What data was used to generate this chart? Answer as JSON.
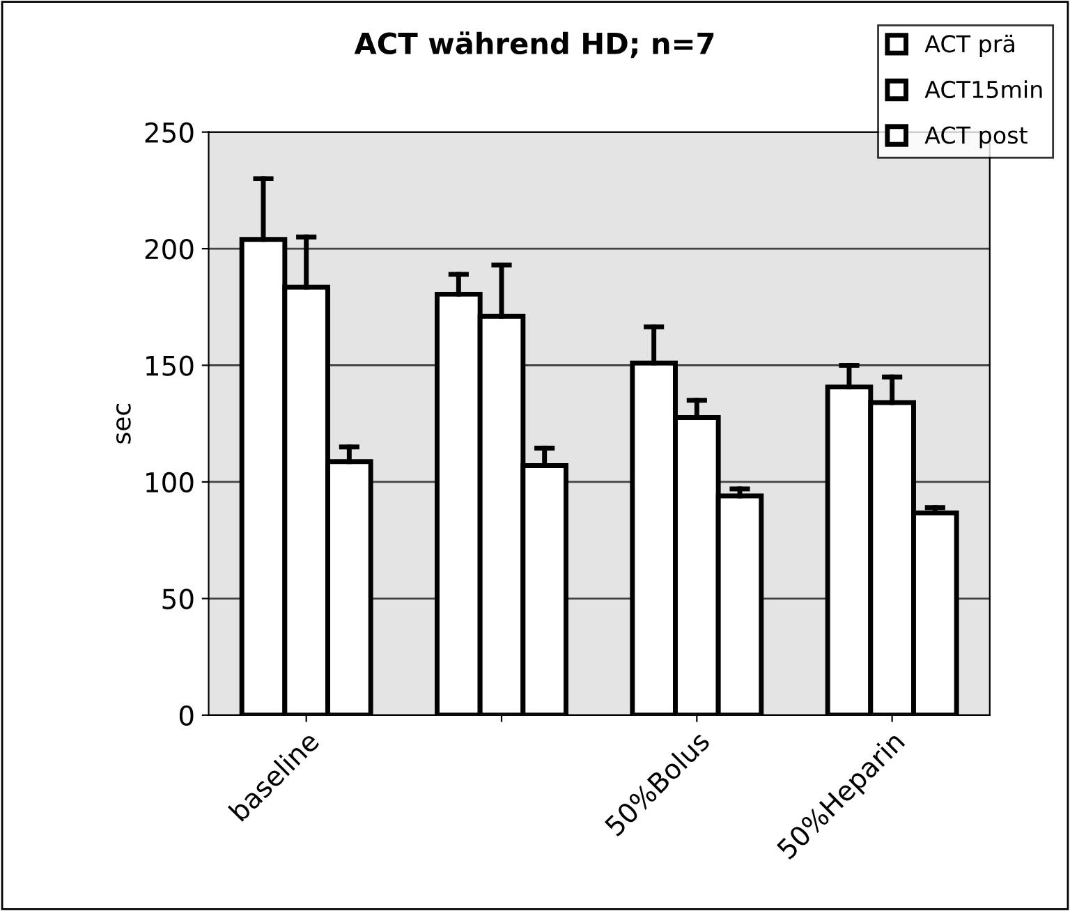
{
  "chart_data": {
    "type": "bar",
    "title": "ACT während HD; n=7",
    "ylabel": "sec",
    "categories": [
      "baseline",
      null,
      "50%Bolus",
      "50%Heparin"
    ],
    "series": [
      {
        "name": "ACT prä",
        "color": "#ffffff",
        "values": [
          204,
          180.5,
          151,
          140.7
        ],
        "errors": [
          [
            204,
            230
          ],
          [
            180.5,
            189
          ],
          [
            151,
            166.5
          ],
          [
            140.7,
            150
          ]
        ]
      },
      {
        "name": "ACT15min",
        "color": "#ffffff",
        "values": [
          183.5,
          171,
          127.6,
          134
        ],
        "errors": [
          [
            183.5,
            205
          ],
          [
            171,
            193
          ],
          [
            127.6,
            135
          ],
          [
            134,
            145
          ]
        ]
      },
      {
        "name": "ACT post",
        "color": "#ffffff",
        "values": [
          108.7,
          107,
          94,
          86.7
        ],
        "errors": [
          [
            108.7,
            115
          ],
          [
            107,
            114.5
          ],
          [
            94,
            97
          ],
          [
            86.7,
            89
          ]
        ]
      }
    ],
    "ylim": [
      0,
      250
    ],
    "yticks": [
      0,
      50,
      100,
      150,
      200,
      250
    ],
    "grid": "y",
    "legend": "top right"
  }
}
